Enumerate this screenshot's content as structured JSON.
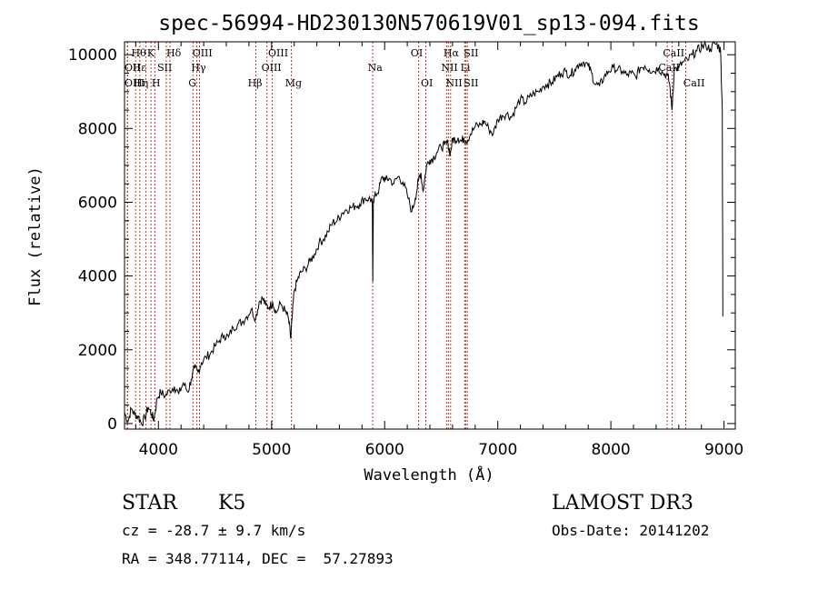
{
  "chart_data": {
    "type": "line",
    "title": "spec-56994-HD230130N570619V01_sp13-094.fits",
    "xlabel": "Wavelength (Å)",
    "ylabel": "Flux (relative)",
    "xlim": [
      3700,
      9100
    ],
    "ylim": [
      -150,
      10350
    ],
    "xticks": [
      4000,
      5000,
      6000,
      7000,
      8000,
      9000
    ],
    "yticks": [
      0,
      2000,
      4000,
      6000,
      8000,
      10000
    ],
    "series": [
      {
        "name": "flux",
        "x": [
          3700,
          3730,
          3760,
          3790,
          3820,
          3850,
          3880,
          3910,
          3940,
          3960,
          3990,
          4020,
          4060,
          4100,
          4140,
          4180,
          4220,
          4260,
          4290,
          4320,
          4350,
          4380,
          4420,
          4460,
          4500,
          4540,
          4580,
          4620,
          4660,
          4700,
          4740,
          4780,
          4820,
          4860,
          4890,
          4920,
          4950,
          4980,
          5010,
          5040,
          5080,
          5120,
          5150,
          5170,
          5180,
          5200,
          5230,
          5260,
          5300,
          5340,
          5380,
          5420,
          5460,
          5500,
          5540,
          5580,
          5620,
          5660,
          5700,
          5740,
          5780,
          5820,
          5860,
          5890,
          5895,
          5900,
          5920,
          5950,
          5980,
          6010,
          6040,
          6080,
          6120,
          6160,
          6200,
          6240,
          6270,
          6300,
          6320,
          6340,
          6370,
          6400,
          6430,
          6460,
          6500,
          6530,
          6560,
          6580,
          6600,
          6620,
          6650,
          6680,
          6700,
          6720,
          6760,
          6800,
          6850,
          6880,
          6920,
          6960,
          7000,
          7040,
          7080,
          7120,
          7160,
          7200,
          7240,
          7280,
          7320,
          7360,
          7400,
          7440,
          7480,
          7520,
          7560,
          7600,
          7640,
          7680,
          7720,
          7760,
          7800,
          7830,
          7860,
          7900,
          7940,
          7980,
          8020,
          8060,
          8100,
          8140,
          8180,
          8220,
          8260,
          8300,
          8340,
          8380,
          8420,
          8460,
          8500,
          8520,
          8540,
          8560,
          8600,
          8640,
          8680,
          8720,
          8760,
          8800,
          8840,
          8880,
          8920,
          8950,
          8970,
          8985,
          8990
        ],
        "values": [
          300,
          50,
          400,
          250,
          200,
          0,
          150,
          450,
          250,
          100,
          700,
          850,
          750,
          900,
          1000,
          800,
          1100,
          850,
          1200,
          1500,
          1400,
          1650,
          1800,
          1900,
          2100,
          2250,
          2400,
          2350,
          2600,
          2700,
          2750,
          2900,
          3100,
          2850,
          3300,
          3400,
          3200,
          3150,
          3300,
          3000,
          3250,
          3050,
          2850,
          2300,
          2800,
          3600,
          3900,
          4100,
          4200,
          4400,
          4600,
          4900,
          5000,
          5200,
          5450,
          5500,
          5700,
          5800,
          5850,
          5900,
          5950,
          6100,
          6100,
          6050,
          3850,
          6050,
          6200,
          6350,
          6700,
          6600,
          6650,
          6500,
          6700,
          6550,
          6200,
          5750,
          6100,
          6600,
          6800,
          6300,
          7000,
          7150,
          7200,
          7350,
          7500,
          7550,
          7600,
          7300,
          7700,
          7700,
          7750,
          7650,
          7750,
          7650,
          7850,
          8050,
          8100,
          8200,
          8000,
          7850,
          8250,
          8350,
          8400,
          8300,
          8550,
          8800,
          8700,
          8850,
          8950,
          9000,
          9150,
          9200,
          9250,
          9400,
          9500,
          9550,
          9450,
          9600,
          9750,
          9800,
          9700,
          9500,
          9200,
          9150,
          9400,
          9550,
          9650,
          9600,
          9550,
          9450,
          9500,
          9400,
          9650,
          9700,
          9600,
          9550,
          9650,
          9500,
          9450,
          9200,
          8500,
          9600,
          9650,
          9800,
          9850,
          10000,
          10100,
          10200,
          10250,
          10150,
          10300,
          10250,
          10100,
          8500,
          2900
        ]
      }
    ],
    "lines": [
      {
        "name": "Hθ",
        "wl": 3798
      },
      {
        "name": "OII",
        "wl": 3727
      },
      {
        "name": "OIII",
        "wl": 3726
      },
      {
        "name": "Hη",
        "wl": 3835
      },
      {
        "name": "K",
        "wl": 3934
      },
      {
        "name": "H",
        "wl": 3968
      },
      {
        "name": "Hε",
        "wl": 3889
      },
      {
        "name": "SII",
        "wl": 4069
      },
      {
        "name": "Hδ",
        "wl": 4102
      },
      {
        "name": "OIII",
        "wl": 4363
      },
      {
        "name": "Hγ",
        "wl": 4340
      },
      {
        "name": "G",
        "wl": 4305
      },
      {
        "name": "Hβ",
        "wl": 4861
      },
      {
        "name": "OIII",
        "wl": 4959
      },
      {
        "name": "OIII",
        "wl": 5007
      },
      {
        "name": "Mg",
        "wl": 5175
      },
      {
        "name": "Na",
        "wl": 5894
      },
      {
        "name": "OI",
        "wl": 6300
      },
      {
        "name": "OI",
        "wl": 6364
      },
      {
        "name": "Hα",
        "wl": 6563
      },
      {
        "name": "NII",
        "wl": 6548
      },
      {
        "name": "NII",
        "wl": 6583
      },
      {
        "name": "SII",
        "wl": 6717
      },
      {
        "name": "Li",
        "wl": 6708
      },
      {
        "name": "SII",
        "wl": 6731
      },
      {
        "name": "CaII",
        "wl": 8498
      },
      {
        "name": "CaII",
        "wl": 8542
      },
      {
        "name": "CaII",
        "wl": 8662
      }
    ],
    "line_labels": [
      {
        "text": "Hθ",
        "wl": 3760,
        "row": 0
      },
      {
        "text": "K",
        "wl": 3900,
        "row": 0
      },
      {
        "text": "Hδ",
        "wl": 4070,
        "row": 0
      },
      {
        "text": "OIII",
        "wl": 4300,
        "row": 0
      },
      {
        "text": "OIII",
        "wl": 4970,
        "row": 0
      },
      {
        "text": "OI",
        "wl": 6230,
        "row": 0
      },
      {
        "text": "Hα",
        "wl": 6520,
        "row": 0
      },
      {
        "text": "SII",
        "wl": 6700,
        "row": 0
      },
      {
        "text": "CaII",
        "wl": 8460,
        "row": 0
      },
      {
        "text": "OII",
        "wl": 3700,
        "row": 1
      },
      {
        "text": "Hε",
        "wl": 3770,
        "row": 1
      },
      {
        "text": "SII",
        "wl": 3990,
        "row": 1
      },
      {
        "text": "Hγ",
        "wl": 4290,
        "row": 1
      },
      {
        "text": "OIII",
        "wl": 4910,
        "row": 1
      },
      {
        "text": "Na",
        "wl": 5850,
        "row": 1
      },
      {
        "text": "NII",
        "wl": 6500,
        "row": 1
      },
      {
        "text": "Li",
        "wl": 6670,
        "row": 1
      },
      {
        "text": "CaII",
        "wl": 8420,
        "row": 1
      },
      {
        "text": "OIII",
        "wl": 3700,
        "row": 2
      },
      {
        "text": "Hη",
        "wl": 3780,
        "row": 2
      },
      {
        "text": "H",
        "wl": 3940,
        "row": 2
      },
      {
        "text": "G",
        "wl": 4265,
        "row": 2
      },
      {
        "text": "Hβ",
        "wl": 4790,
        "row": 2
      },
      {
        "text": "Mg",
        "wl": 5120,
        "row": 2
      },
      {
        "text": "OI",
        "wl": 6320,
        "row": 2
      },
      {
        "text": "NII",
        "wl": 6540,
        "row": 2
      },
      {
        "text": "SII",
        "wl": 6700,
        "row": 2
      },
      {
        "text": "CaII",
        "wl": 8640,
        "row": 2
      }
    ]
  },
  "info": {
    "class": "STAR",
    "subclass": "K5",
    "survey": "LAMOST DR3",
    "cz": "cz = -28.7 ± 9.7 km/s",
    "obs_date": "Obs-Date: 20141202",
    "radec": "RA = 348.77114, DEC =  57.27893"
  }
}
